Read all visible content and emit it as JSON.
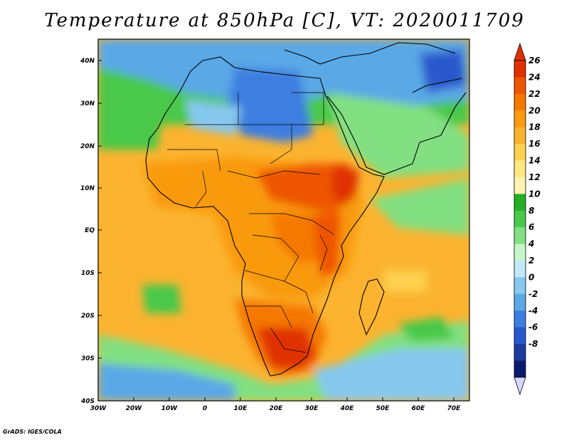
{
  "title": "Temperature at 850hPa [C], VT: 2020011709",
  "credit": "GrADS: IGES/COLA",
  "map": {
    "variable": "Temperature at 850hPa",
    "units": "C",
    "valid_time": "2020011709",
    "lon_range": [
      -30,
      75
    ],
    "lat_range": [
      -40,
      45
    ],
    "lon_ticks": [
      "30W",
      "20W",
      "10W",
      "0",
      "10E",
      "20E",
      "30E",
      "40E",
      "50E",
      "60E",
      "70E"
    ],
    "lat_ticks": [
      "40N",
      "30N",
      "20N",
      "10N",
      "EQ",
      "10S",
      "20S",
      "30S",
      "40S"
    ]
  },
  "colorbar": {
    "labels": [
      "26",
      "24",
      "22",
      "20",
      "18",
      "16",
      "14",
      "12",
      "10",
      "8",
      "6",
      "4",
      "2",
      "0",
      "-2",
      "-4",
      "-6",
      "-8"
    ],
    "colors": [
      "#e03000",
      "#ee5500",
      "#f57800",
      "#f99a10",
      "#fbb330",
      "#fdd050",
      "#fde880",
      "#fff4b0",
      "#24b024",
      "#4ac84a",
      "#82e082",
      "#c8f5c8",
      "#c2e8f8",
      "#86c8ee",
      "#5aa8e6",
      "#3c7ee0",
      "#2a58cc",
      "#1f3a9e",
      "#0c1a6e"
    ],
    "below_color": "#d8d8ff"
  },
  "colors": {
    "ocean_cool": "#5aa8e6",
    "ocean_mild": "#fbb330",
    "sahara_cold": "#86c8ee",
    "africa_hot": "#ee5500",
    "south_africa_hot": "#e03000",
    "mid_lat_band": "#4ac84a"
  }
}
